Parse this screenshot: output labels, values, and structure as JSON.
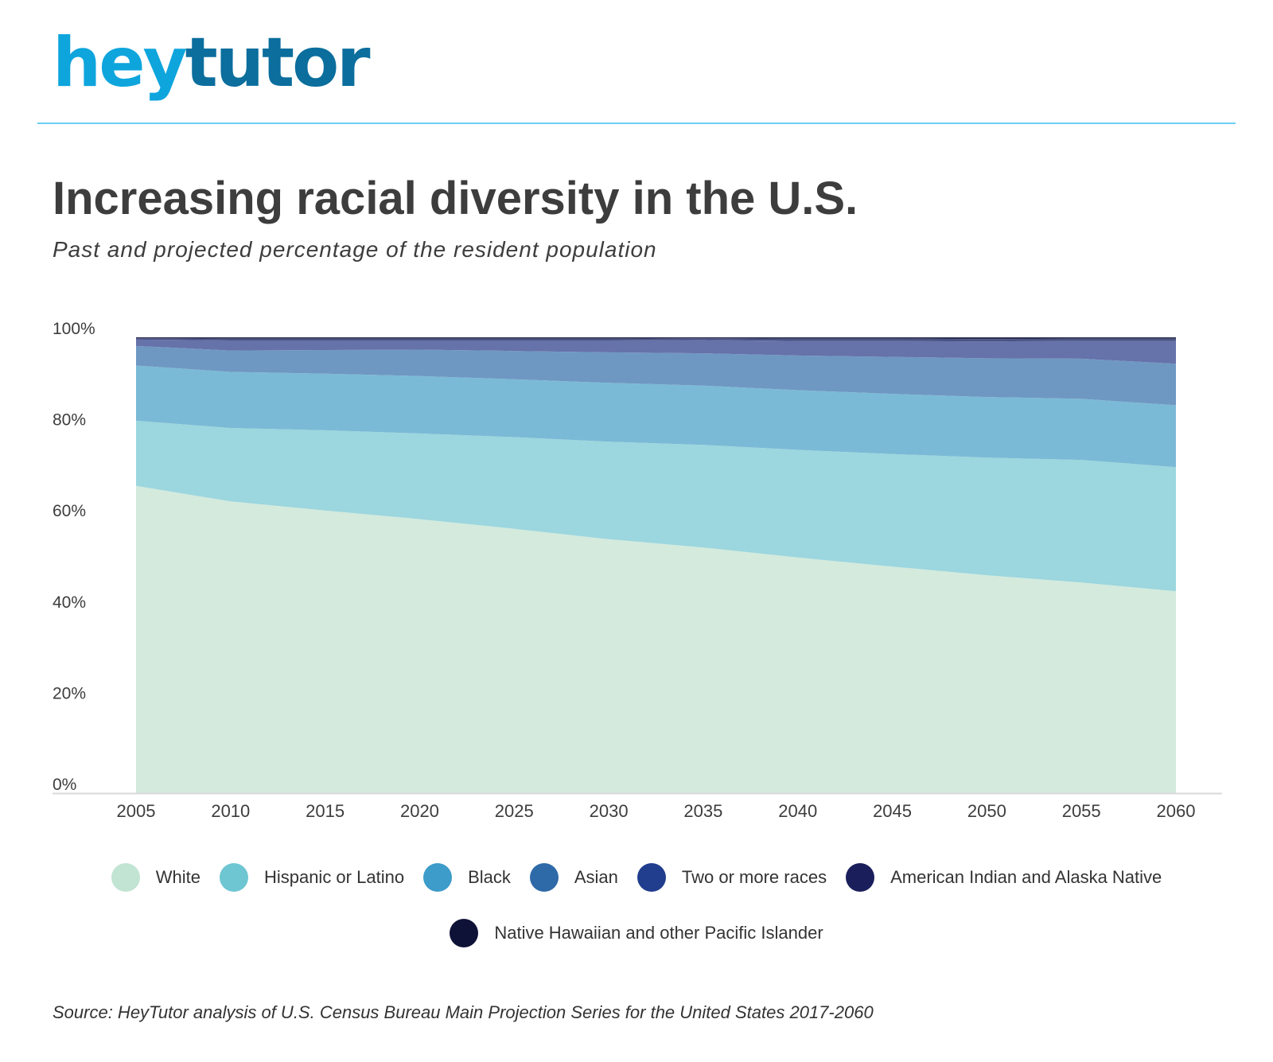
{
  "brand": {
    "logo_part1": "hey",
    "logo_part2": "tutor"
  },
  "source": "Source: HeyTutor analysis of U.S. Census Bureau Main Projection Series for the United States 2017-2060",
  "chart_data": {
    "type": "area",
    "stacked": true,
    "title": "Increasing racial diversity in the U.S.",
    "subtitle": "Past and projected percentage of the resident population",
    "x": [
      2005,
      2010,
      2015,
      2020,
      2025,
      2030,
      2035,
      2040,
      2045,
      2050,
      2055,
      2060
    ],
    "y_ticks": [
      "0%",
      "20%",
      "40%",
      "60%",
      "80%",
      "100%"
    ],
    "ylim": [
      0,
      100
    ],
    "grid": false,
    "legend_position": "bottom",
    "series": [
      {
        "name": "White",
        "color": "#c2e4d3",
        "fill": "#d3eadd",
        "values": [
          67.4,
          64.0,
          62.0,
          60.1,
          58.0,
          55.7,
          53.9,
          51.7,
          49.7,
          47.8,
          46.2,
          44.3
        ]
      },
      {
        "name": "Hispanic or Latino",
        "color": "#6ec6d2",
        "fill": "#9cd6de",
        "values": [
          14.3,
          16.1,
          17.6,
          18.8,
          20.1,
          21.4,
          22.5,
          23.6,
          24.7,
          25.8,
          26.9,
          27.2
        ]
      },
      {
        "name": "Black",
        "color": "#3d9cc9",
        "fill": "#7bbad6",
        "values": [
          12.1,
          12.3,
          12.4,
          12.6,
          12.7,
          12.9,
          13.0,
          13.1,
          13.2,
          13.3,
          13.4,
          13.6
        ]
      },
      {
        "name": "Asian",
        "color": "#2f6aa8",
        "fill": "#6e98c2",
        "values": [
          4.3,
          4.7,
          5.2,
          5.8,
          6.2,
          6.7,
          7.1,
          7.6,
          8.1,
          8.5,
          8.8,
          9.1
        ]
      },
      {
        "name": "Two or more races",
        "color": "#203d8e",
        "fill": "#6672aa",
        "values": [
          1.4,
          2.2,
          2.1,
          2.0,
          2.3,
          2.6,
          2.9,
          3.2,
          3.5,
          3.7,
          3.9,
          5.0
        ]
      },
      {
        "name": "American Indian and Alaska Native",
        "color": "#1a1f5c",
        "fill": "#4b5383",
        "values": [
          0.3,
          0.4,
          0.4,
          0.4,
          0.4,
          0.4,
          0.4,
          0.5,
          0.5,
          0.5,
          0.5,
          0.5
        ]
      },
      {
        "name": "Native Hawaiian and other Pacific Islander",
        "color": "#0e1236",
        "fill": "#2b2f54",
        "values": [
          0.2,
          0.3,
          0.3,
          0.3,
          0.3,
          0.3,
          0.2,
          0.3,
          0.3,
          0.4,
          0.3,
          0.3
        ]
      }
    ]
  }
}
